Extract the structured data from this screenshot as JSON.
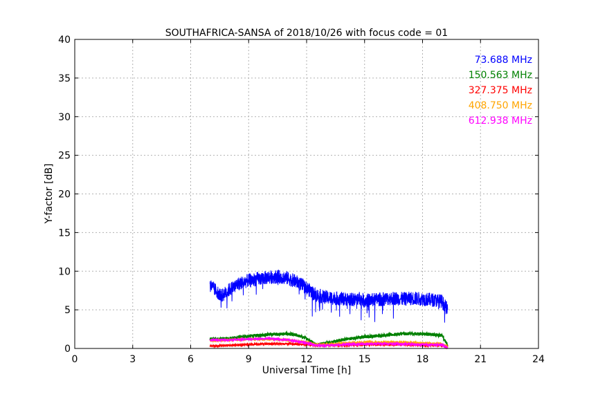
{
  "chart_data": {
    "type": "line",
    "title": "SOUTHAFRICA-SANSA of 2018/10/26 with focus code = 01",
    "xlabel": "Universal Time [h]",
    "ylabel": "Y-factor [dB]",
    "xlim": [
      0,
      24
    ],
    "ylim": [
      0,
      40
    ],
    "xticks": [
      0,
      3,
      6,
      9,
      12,
      15,
      18,
      21,
      24
    ],
    "yticks": [
      0,
      5,
      10,
      15,
      20,
      25,
      30,
      35,
      40
    ],
    "xtick_labels": [
      "0",
      "3",
      "6",
      "9",
      "12",
      "15",
      "18",
      "21",
      "24"
    ],
    "ytick_labels": [
      "0",
      "5",
      "10",
      "15",
      "20",
      "25",
      "30",
      "35",
      "40"
    ],
    "grid": true,
    "legend_position": "top-right",
    "series": [
      {
        "name": "73.688 MHz",
        "color": "#0000ff",
        "x": [
          7.0,
          7.3,
          7.6,
          8.0,
          8.5,
          9.0,
          9.5,
          10.0,
          10.5,
          11.0,
          11.5,
          12.0,
          12.5,
          13.0,
          13.5,
          14.0,
          14.5,
          14.7,
          15.0,
          15.5,
          16.0,
          16.5,
          17.0,
          17.5,
          18.0,
          18.5,
          19.0,
          19.3
        ],
        "y": [
          8.2,
          7.5,
          6.8,
          7.6,
          8.4,
          8.8,
          9.0,
          9.2,
          9.3,
          9.1,
          8.6,
          7.8,
          6.9,
          6.6,
          6.5,
          6.4,
          6.3,
          6.5,
          6.2,
          6.3,
          6.4,
          6.5,
          6.4,
          6.5,
          6.4,
          6.3,
          6.1,
          5.0
        ]
      },
      {
        "name": "150.563 MHz",
        "color": "#008000",
        "x": [
          7.0,
          8.0,
          9.0,
          10.0,
          11.0,
          11.5,
          12.0,
          12.5,
          13.0,
          13.5,
          14.0,
          15.0,
          16.0,
          17.0,
          18.0,
          19.0,
          19.3
        ],
        "y": [
          1.2,
          1.3,
          1.6,
          1.8,
          1.9,
          1.7,
          1.3,
          0.5,
          0.7,
          0.9,
          1.2,
          1.5,
          1.7,
          1.9,
          1.9,
          1.7,
          0.4
        ]
      },
      {
        "name": "327.375 MHz",
        "color": "#ff0000",
        "x": [
          7.0,
          8.0,
          9.0,
          10.0,
          11.0,
          12.0,
          12.5,
          13.0,
          14.0,
          15.0,
          16.0,
          17.0,
          18.0,
          19.0,
          19.3
        ],
        "y": [
          0.3,
          0.4,
          0.5,
          0.6,
          0.6,
          0.5,
          0.4,
          0.4,
          0.4,
          0.5,
          0.5,
          0.5,
          0.4,
          0.4,
          0.2
        ]
      },
      {
        "name": "408.750 MHz",
        "color": "#ffa500",
        "x": [
          7.0,
          8.0,
          9.0,
          10.0,
          11.0,
          12.0,
          12.5,
          13.0,
          14.0,
          15.0,
          16.0,
          17.0,
          18.0,
          19.0,
          19.3
        ],
        "y": [
          1.0,
          1.1,
          1.2,
          1.2,
          1.1,
          0.8,
          0.5,
          0.5,
          0.7,
          0.8,
          0.8,
          0.8,
          0.7,
          0.6,
          0.2
        ]
      },
      {
        "name": "612.938 MHz",
        "color": "#ff00ff",
        "x": [
          7.0,
          8.0,
          9.0,
          10.0,
          11.0,
          12.0,
          12.5,
          13.0,
          14.0,
          15.0,
          16.0,
          17.0,
          18.0,
          19.0,
          19.3
        ],
        "y": [
          1.1,
          1.1,
          1.2,
          1.3,
          1.1,
          0.7,
          0.4,
          0.4,
          0.5,
          0.6,
          0.6,
          0.6,
          0.5,
          0.5,
          0.1
        ]
      }
    ]
  }
}
